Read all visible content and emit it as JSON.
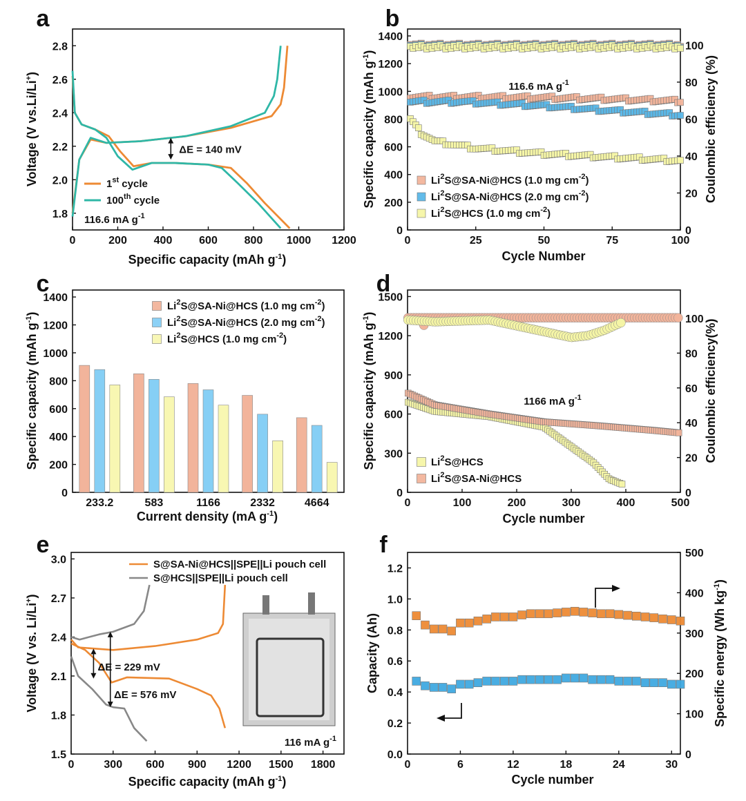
{
  "chart_data": [
    {
      "panel": "a",
      "type": "line",
      "xlabel": "Specific capacity (mAh g",
      "xlabel_sup": "-1",
      "xlabel_end": ")",
      "ylabel": "Voltage (V vs.Li/Li",
      "ylabel_sup": "+",
      "ylabel_end": ")",
      "xlim": [
        0,
        1200
      ],
      "ylim": [
        1.7,
        2.9
      ],
      "xticks": [
        0,
        200,
        400,
        600,
        800,
        1000,
        1200
      ],
      "yticks": [
        1.8,
        2.0,
        2.2,
        2.4,
        2.6,
        2.8
      ],
      "annotation": "ΔE = 140 mV",
      "annotation_at": {
        "x": 465,
        "v1": 2.25,
        "v2": 2.12
      },
      "rate_label": "116.6 mA g",
      "rate_sup": "-1",
      "series": [
        {
          "name": "1st cycle",
          "name_main": "1",
          "name_sup": "st",
          "name_end": " cycle",
          "color": "#ED8A34",
          "discharge": [
            [
              0,
              2.62
            ],
            [
              10,
              2.4
            ],
            [
              40,
              2.33
            ],
            [
              100,
              2.3
            ],
            [
              160,
              2.26
            ],
            [
              210,
              2.17
            ],
            [
              270,
              2.08
            ],
            [
              350,
              2.1
            ],
            [
              450,
              2.1
            ],
            [
              600,
              2.09
            ],
            [
              700,
              2.07
            ],
            [
              770,
              1.98
            ],
            [
              850,
              1.86
            ],
            [
              960,
              1.71
            ]
          ],
          "charge": [
            [
              0,
              1.8
            ],
            [
              30,
              2.12
            ],
            [
              80,
              2.24
            ],
            [
              150,
              2.22
            ],
            [
              300,
              2.23
            ],
            [
              500,
              2.26
            ],
            [
              700,
              2.31
            ],
            [
              880,
              2.38
            ],
            [
              920,
              2.45
            ],
            [
              935,
              2.55
            ],
            [
              950,
              2.8
            ]
          ]
        },
        {
          "name": "100th cycle",
          "name_main": "100",
          "name_sup": "th",
          "name_end": " cycle",
          "color": "#2FB7A7",
          "discharge": [
            [
              0,
              2.65
            ],
            [
              10,
              2.4
            ],
            [
              40,
              2.33
            ],
            [
              100,
              2.3
            ],
            [
              150,
              2.25
            ],
            [
              200,
              2.14
            ],
            [
              265,
              2.06
            ],
            [
              350,
              2.1
            ],
            [
              450,
              2.1
            ],
            [
              600,
              2.09
            ],
            [
              660,
              2.07
            ],
            [
              730,
              1.98
            ],
            [
              820,
              1.86
            ],
            [
              920,
              1.71
            ]
          ],
          "charge": [
            [
              0,
              1.78
            ],
            [
              30,
              2.12
            ],
            [
              80,
              2.25
            ],
            [
              150,
              2.22
            ],
            [
              300,
              2.23
            ],
            [
              500,
              2.26
            ],
            [
              700,
              2.32
            ],
            [
              850,
              2.4
            ],
            [
              890,
              2.5
            ],
            [
              905,
              2.6
            ],
            [
              920,
              2.8
            ]
          ]
        }
      ]
    },
    {
      "panel": "b",
      "type": "scatter",
      "xlabel": "Cycle Number",
      "ylabel": "Specific capacity (mAh g",
      "ylabel_sup": "-1",
      "ylabel_end": ")",
      "y2label": "Coulombic efficiency (%)",
      "xlim": [
        0,
        100
      ],
      "ylim": [
        0,
        1450
      ],
      "y2lim": [
        0,
        108.75
      ],
      "xticks": [
        0,
        25,
        50,
        75,
        100
      ],
      "yticks": [
        0,
        200,
        400,
        600,
        800,
        1000,
        1200,
        1400
      ],
      "y2ticks": [
        0,
        20,
        40,
        60,
        80,
        100
      ],
      "rate_label": "116.6 mA g",
      "rate_sup": "-1",
      "series": [
        {
          "name": "Li2S@SA-Ni@HCS (1.0 mg cm-2)",
          "p1": "Li",
          "s1": "2",
          "p2": "S@SA-Ni@HCS (1.0 mg cm",
          "s2": "-2",
          "p3": ")",
          "color": "#F2B49B",
          "capacity": [
            [
              1,
              960
            ],
            [
              25,
              960
            ],
            [
              50,
              955
            ],
            [
              75,
              945
            ],
            [
              100,
              930
            ]
          ],
          "ce": 100
        },
        {
          "name": "Li2S@SA-Ni@HCS (2.0 mg cm-2)",
          "p1": "Li",
          "s1": "2",
          "p2": "S@SA-Ni@HCS (2.0 mg cm",
          "s2": "-2",
          "p3": ")",
          "color": "#5AB7E8",
          "capacity": [
            [
              1,
              925
            ],
            [
              20,
              925
            ],
            [
              50,
              895
            ],
            [
              75,
              860
            ],
            [
              100,
              830
            ]
          ],
          "ce": 99.5
        },
        {
          "name": "Li2S@HCS (1.0 mg cm-2)",
          "p1": "Li",
          "s1": "2",
          "p2": "S@HCS (1.0 mg cm",
          "s2": "-2",
          "p3": ")",
          "color": "#F5F5A6",
          "capacity": [
            [
              1,
              800
            ],
            [
              5,
              700
            ],
            [
              10,
              640
            ],
            [
              25,
              590
            ],
            [
              50,
              550
            ],
            [
              75,
              525
            ],
            [
              100,
              500
            ]
          ],
          "ce": 99
        }
      ]
    },
    {
      "panel": "c",
      "type": "bar",
      "xlabel": "Current density (mA g",
      "xlabel_sup": "-1",
      "xlabel_end": ")",
      "ylabel": "Specific capacity (mAh g",
      "ylabel_sup": "-1",
      "ylabel_end": ")",
      "ylim": [
        0,
        1450
      ],
      "yticks": [
        0,
        200,
        400,
        600,
        800,
        1000,
        1200,
        1400
      ],
      "categories": [
        "233.2",
        "583",
        "1166",
        "2332",
        "4664"
      ],
      "series": [
        {
          "name": "Li2S@SA-Ni@HCS (1.0 mg cm-2)",
          "p1": "Li",
          "s1": "2",
          "p2": "S@SA-Ni@HCS (1.0 mg cm",
          "s2": "-2",
          "p3": ")",
          "color": "#F2B49B",
          "values": [
            910,
            850,
            780,
            695,
            535
          ]
        },
        {
          "name": "Li2S@SA-Ni@HCS (2.0 mg cm-2)",
          "p1": "Li",
          "s1": "2",
          "p2": "S@SA-Ni@HCS (2.0 mg cm",
          "s2": "-2",
          "p3": ")",
          "color": "#86CFF5",
          "values": [
            880,
            810,
            735,
            560,
            480
          ]
        },
        {
          "name": "Li2S@HCS (1.0 mg cm-2)",
          "p1": "Li",
          "s1": "2",
          "p2": "S@HCS (1.0 mg cm",
          "s2": "-2",
          "p3": ")",
          "color": "#F8F7B2",
          "values": [
            770,
            685,
            625,
            370,
            215
          ]
        }
      ]
    },
    {
      "panel": "d",
      "type": "scatter",
      "xlabel": "Cycle number",
      "ylabel": "Specific capacity (mAh g",
      "ylabel_sup": "-1",
      "ylabel_end": ")",
      "y2label": "Coulombic efficiency(%)",
      "xlim": [
        0,
        500
      ],
      "ylim": [
        0,
        1550
      ],
      "y2lim": [
        0,
        116.25
      ],
      "xticks": [
        0,
        100,
        200,
        300,
        400,
        500
      ],
      "yticks": [
        0,
        300,
        600,
        900,
        1200,
        1500
      ],
      "y2ticks": [
        0,
        20,
        40,
        60,
        80,
        100
      ],
      "rate_label": "1166 mA g",
      "rate_sup": "-1",
      "series": [
        {
          "name": "Li2S@HCS",
          "p1": "Li",
          "s1": "2",
          "p2": "S@HCS",
          "color": "#F5F5A6",
          "capacity": [
            [
              1,
              690
            ],
            [
              50,
              620
            ],
            [
              150,
              580
            ],
            [
              250,
              500
            ],
            [
              300,
              350
            ],
            [
              340,
              230
            ],
            [
              370,
              100
            ],
            [
              395,
              60
            ]
          ],
          "ce": [
            [
              1,
              99
            ],
            [
              50,
              98
            ],
            [
              150,
              99
            ],
            [
              240,
              93
            ],
            [
              300,
              89
            ],
            [
              330,
              90
            ],
            [
              360,
              93
            ],
            [
              395,
              98
            ]
          ]
        },
        {
          "name": "Li2S@SA-Ni@HCS",
          "p1": "Li",
          "s1": "2",
          "p2": "S@SA-Ni@HCS",
          "color": "#F2B49B",
          "capacity": [
            [
              1,
              760
            ],
            [
              50,
              670
            ],
            [
              150,
              600
            ],
            [
              250,
              540
            ],
            [
              350,
              510
            ],
            [
              450,
              475
            ],
            [
              500,
              455
            ]
          ],
          "ce": 100,
          "ce_outlier": [
            30,
            96
          ]
        }
      ]
    },
    {
      "panel": "e",
      "type": "line",
      "xlabel": "Specific capacity  (mAh g",
      "xlabel_sup": "-1",
      "xlabel_end": ")",
      "ylabel": "Voltage (V vs. Li/Li",
      "ylabel_sup": "+",
      "ylabel_end": ")",
      "xlim": [
        0,
        1950
      ],
      "ylim": [
        1.5,
        3.05
      ],
      "xticks": [
        0,
        300,
        600,
        900,
        1200,
        1500,
        1800
      ],
      "yticks": [
        1.5,
        1.8,
        2.1,
        2.4,
        2.7,
        3.0
      ],
      "annotations": [
        "ΔE = 229 mV",
        "ΔE = 576 mV"
      ],
      "rate_label": "116 mA g",
      "rate_sup": "-1",
      "series": [
        {
          "name": "S@SA-Ni@HCS||SPE||Li pouch cell",
          "color": "#ED8A34",
          "discharge": [
            [
              0,
              2.35
            ],
            [
              100,
              2.3
            ],
            [
              200,
              2.2
            ],
            [
              290,
              2.05
            ],
            [
              400,
              2.09
            ],
            [
              700,
              2.08
            ],
            [
              900,
              2.0
            ],
            [
              1000,
              1.95
            ],
            [
              1060,
              1.85
            ],
            [
              1100,
              1.7
            ]
          ],
          "charge": [
            [
              0,
              2.38
            ],
            [
              50,
              2.32
            ],
            [
              300,
              2.3
            ],
            [
              600,
              2.33
            ],
            [
              900,
              2.38
            ],
            [
              1050,
              2.43
            ],
            [
              1085,
              2.5
            ],
            [
              1100,
              2.8
            ]
          ]
        },
        {
          "name": "S@HCS||SPE||Li pouch cell",
          "color": "#888888",
          "discharge": [
            [
              0,
              2.25
            ],
            [
              50,
              2.1
            ],
            [
              150,
              2.0
            ],
            [
              250,
              1.88
            ],
            [
              300,
              1.86
            ],
            [
              380,
              1.85
            ],
            [
              450,
              1.7
            ],
            [
              540,
              1.6
            ]
          ],
          "charge": [
            [
              0,
              2.4
            ],
            [
              60,
              2.38
            ],
            [
              200,
              2.42
            ],
            [
              300,
              2.44
            ],
            [
              450,
              2.5
            ],
            [
              520,
              2.6
            ],
            [
              560,
              2.8
            ]
          ]
        }
      ]
    },
    {
      "panel": "f",
      "type": "scatter",
      "xlabel": "Cycle number",
      "ylabel": "Capacity (Ah)",
      "y2label": "Specific energy (Wh kg",
      "y2label_sup": "-1",
      "y2label_end": ")",
      "xlim": [
        0,
        31
      ],
      "ylim": [
        0,
        1.3
      ],
      "y2lim": [
        0,
        500
      ],
      "xticks": [
        0,
        6,
        12,
        18,
        24,
        30
      ],
      "yticks": [
        0.0,
        0.2,
        0.4,
        0.6,
        0.8,
        1.0,
        1.2
      ],
      "y2ticks": [
        0,
        100,
        200,
        300,
        400,
        500
      ],
      "x": [
        1,
        2,
        3,
        4,
        5,
        6,
        7,
        8,
        9,
        10,
        11,
        12,
        13,
        14,
        15,
        16,
        17,
        18,
        19,
        20,
        21,
        22,
        23,
        24,
        25,
        26,
        27,
        28,
        29,
        30,
        31
      ],
      "series": [
        {
          "name": "Specific energy",
          "axis": "right",
          "color": "#ED8A34",
          "values": [
            343,
            320,
            310,
            310,
            305,
            325,
            325,
            330,
            335,
            340,
            340,
            340,
            345,
            348,
            348,
            348,
            350,
            352,
            354,
            352,
            350,
            348,
            348,
            346,
            344,
            342,
            340,
            338,
            335,
            333,
            330
          ]
        },
        {
          "name": "Capacity",
          "axis": "left",
          "color": "#3FA9E0",
          "values": [
            0.47,
            0.44,
            0.43,
            0.43,
            0.42,
            0.45,
            0.45,
            0.46,
            0.47,
            0.47,
            0.47,
            0.47,
            0.48,
            0.48,
            0.48,
            0.48,
            0.48,
            0.49,
            0.49,
            0.49,
            0.48,
            0.48,
            0.48,
            0.47,
            0.47,
            0.47,
            0.46,
            0.46,
            0.46,
            0.45,
            0.45
          ]
        }
      ]
    }
  ]
}
